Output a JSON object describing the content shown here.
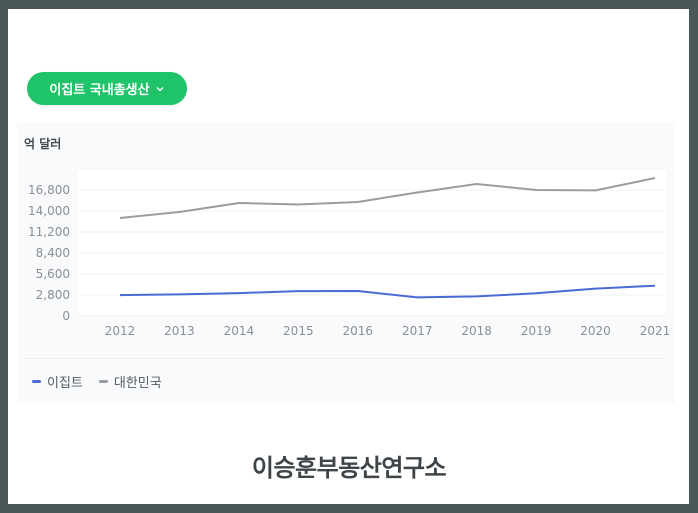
{
  "selector": {
    "label": "이집트 국내총생산",
    "icon": "chevron-down-icon",
    "color": "#1fc46a"
  },
  "chart_data": {
    "type": "line",
    "title": "이집트 국내총생산",
    "ylabel": "억 달러",
    "xlabel": "",
    "ylim": [
      0,
      18900
    ],
    "yticks": [
      0,
      2800,
      5600,
      8400,
      11200,
      14000,
      16800
    ],
    "ytick_labels": [
      "0",
      "2,800",
      "5,600",
      "8,400",
      "11,200",
      "14,000",
      "16,800"
    ],
    "categories": [
      "2012",
      "2013",
      "2014",
      "2015",
      "2016",
      "2017",
      "2018",
      "2019",
      "2020",
      "2021"
    ],
    "grid": true,
    "legend_position": "bottom-left",
    "series": [
      {
        "name": "이집트",
        "color": "#4a6bd6",
        "values": [
          2790,
          2880,
          3050,
          3320,
          3330,
          2480,
          2620,
          3030,
          3650,
          4040
        ]
      },
      {
        "name": "대한민국",
        "color": "#9a9da0",
        "values": [
          13070,
          13870,
          15070,
          14870,
          15200,
          16470,
          17600,
          16800,
          16740,
          18400
        ]
      }
    ]
  },
  "brand": {
    "text": "이승훈부동산연구소"
  }
}
